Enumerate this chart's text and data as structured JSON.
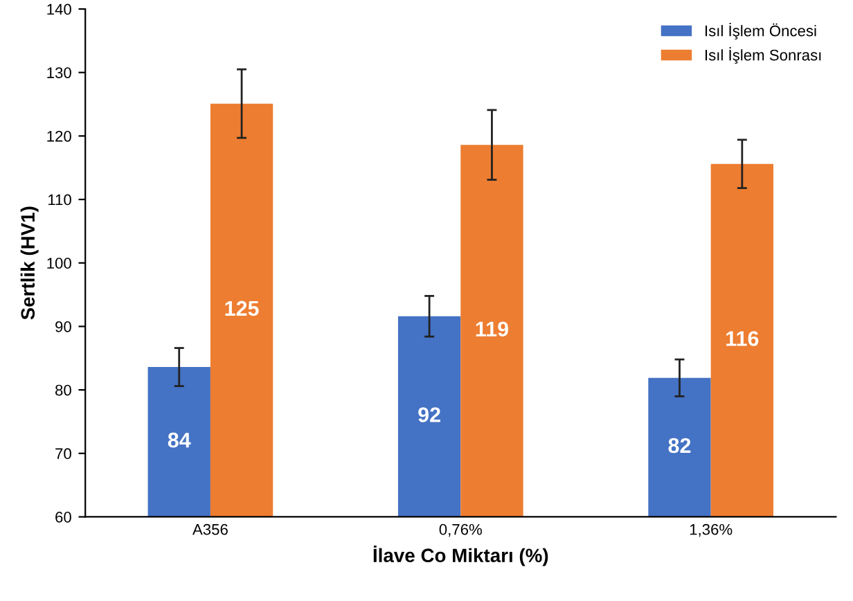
{
  "chart_data": {
    "type": "bar",
    "xlabel": "İlave Co Miktarı (%)",
    "ylabel": "Sertlik (HV1)",
    "categories": [
      "A356",
      "0,76%",
      "1,36%"
    ],
    "series": [
      {
        "name": "Isıl İşlem Öncesi",
        "color": "#4472c4",
        "values": [
          83.6,
          91.6,
          81.9
        ],
        "errors": [
          3,
          3.2,
          2.9
        ],
        "value_labels": [
          "84",
          "92",
          "82"
        ]
      },
      {
        "name": "Isıl İşlem Sonrası",
        "color": "#ed7d31",
        "values": [
          125.1,
          118.6,
          115.6
        ],
        "errors": [
          5.4,
          5.5,
          3.8
        ],
        "value_labels": [
          "125",
          "119",
          "116"
        ]
      }
    ],
    "ylim": [
      60,
      140
    ],
    "yticks": [
      60,
      70,
      80,
      90,
      100,
      110,
      120,
      130,
      140
    ],
    "legend": "top right",
    "grid": false
  }
}
